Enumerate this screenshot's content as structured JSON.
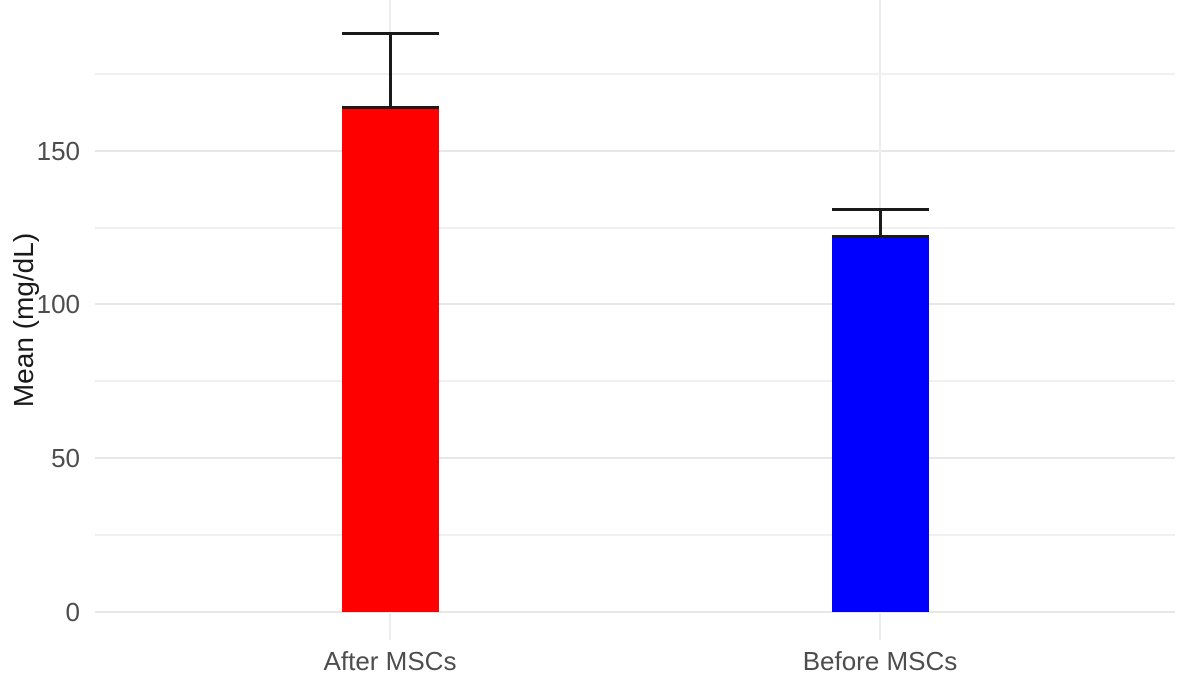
{
  "figure": {
    "background": "#ffffff"
  },
  "chart_data": {
    "type": "bar",
    "categories": [
      "After MSCs",
      "Before MSCs"
    ],
    "values": [
      164,
      122
    ],
    "error_upper": [
      188,
      131
    ],
    "bar_colors": [
      "#ff0000",
      "#0000ff"
    ],
    "title": "",
    "xlabel": "",
    "ylabel": "Mean (mg/dL)",
    "ylim": [
      0,
      199
    ],
    "yticks_major": [
      0,
      50,
      100,
      150
    ],
    "yticks_minor": [
      25,
      75,
      125,
      175
    ],
    "grid": "horizontal major+minor, vertical at category centers",
    "legend": "none",
    "error_bar_style": "upper error bar with horizontal caps at mean and at mean+error",
    "colors": {
      "grid_major": "#e7e7e7",
      "grid_minor": "#f0f0f0",
      "grid_vertical": "#ededed",
      "tick_label": "#4d4d4d",
      "axis_title": "#1a1a1a",
      "error_bar": "#1a1a1a"
    }
  }
}
